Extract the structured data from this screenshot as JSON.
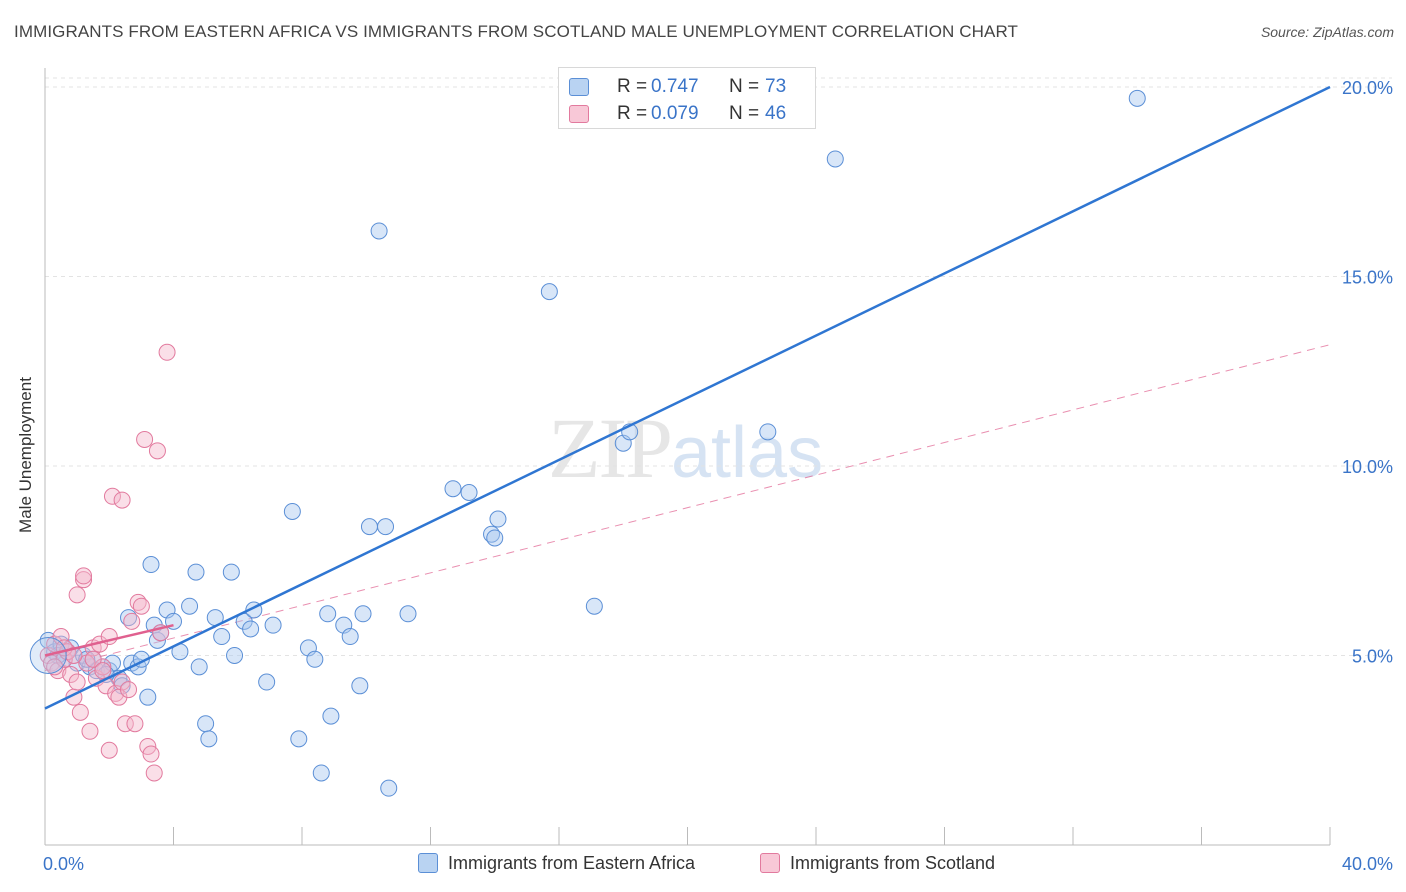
{
  "header": {
    "title": "IMMIGRANTS FROM EASTERN AFRICA VS IMMIGRANTS FROM SCOTLAND MALE UNEMPLOYMENT CORRELATION CHART",
    "source": "Source: ZipAtlas.com"
  },
  "legend": {
    "rows": [
      {
        "r_label": "R =",
        "r_value": "0.747",
        "n_label": "N =",
        "n_value": "73"
      },
      {
        "r_label": "R =",
        "r_value": "0.079",
        "n_label": "N =",
        "n_value": "46"
      }
    ]
  },
  "watermark": {
    "zip": "ZIP",
    "atlas": "atlas"
  },
  "colors": {
    "blue_fill": "#a9c8ef",
    "blue_stroke": "#5b8fd6",
    "blue_line": "#2f76d2",
    "pink_fill": "#f5b7cb",
    "pink_stroke": "#e27a9e",
    "pink_line": "#e0608f",
    "grid": "#e3e3e3",
    "tick_text": "#3a74c8"
  },
  "chart_data": {
    "type": "scatter",
    "title": "IMMIGRANTS FROM EASTERN AFRICA VS IMMIGRANTS FROM SCOTLAND MALE UNEMPLOYMENT CORRELATION CHART",
    "xlabel": "",
    "ylabel": "Male Unemployment",
    "xlim": [
      0,
      40
    ],
    "ylim": [
      0,
      20.5
    ],
    "x_tick_labels": [
      "0.0%",
      "40.0%"
    ],
    "y_ticks": [
      5,
      10,
      15,
      20
    ],
    "y_tick_labels": [
      "5.0%",
      "10.0%",
      "15.0%",
      "20.0%"
    ],
    "grid": true,
    "legend_position": "top-center",
    "series": [
      {
        "name": "Immigrants from Eastern Africa",
        "color": "#a9c8ef",
        "trend": {
          "x": [
            0,
            40
          ],
          "y": [
            3.6,
            20.0
          ]
        },
        "points": [
          [
            0.1,
            5.4
          ],
          [
            0.3,
            5.1
          ],
          [
            0.5,
            5.3
          ],
          [
            0.6,
            4.9
          ],
          [
            0.8,
            5.2
          ],
          [
            1.0,
            4.8
          ],
          [
            1.2,
            5.0
          ],
          [
            1.4,
            4.7
          ],
          [
            1.5,
            4.9
          ],
          [
            1.6,
            4.6
          ],
          [
            1.8,
            4.7
          ],
          [
            2.0,
            4.6
          ],
          [
            2.1,
            4.8
          ],
          [
            2.3,
            4.4
          ],
          [
            2.4,
            4.2
          ],
          [
            2.7,
            4.8
          ],
          [
            2.9,
            4.7
          ],
          [
            3.2,
            3.9
          ],
          [
            3.4,
            5.8
          ],
          [
            3.5,
            5.4
          ],
          [
            3.3,
            7.4
          ],
          [
            3.6,
            5.6
          ],
          [
            3.8,
            6.2
          ],
          [
            4.0,
            5.9
          ],
          [
            4.2,
            5.1
          ],
          [
            4.5,
            6.3
          ],
          [
            4.7,
            7.2
          ],
          [
            4.8,
            4.7
          ],
          [
            5.0,
            3.2
          ],
          [
            5.1,
            2.8
          ],
          [
            5.3,
            6.0
          ],
          [
            5.5,
            5.5
          ],
          [
            5.8,
            7.2
          ],
          [
            5.9,
            5.0
          ],
          [
            6.2,
            5.9
          ],
          [
            6.4,
            5.7
          ],
          [
            6.5,
            6.2
          ],
          [
            6.9,
            4.3
          ],
          [
            7.1,
            5.8
          ],
          [
            7.7,
            8.8
          ],
          [
            7.9,
            2.8
          ],
          [
            8.2,
            5.2
          ],
          [
            8.4,
            4.9
          ],
          [
            8.6,
            1.9
          ],
          [
            8.8,
            6.1
          ],
          [
            8.9,
            3.4
          ],
          [
            9.3,
            5.8
          ],
          [
            9.5,
            5.5
          ],
          [
            9.8,
            4.2
          ],
          [
            9.9,
            6.1
          ],
          [
            10.1,
            8.4
          ],
          [
            10.6,
            8.4
          ],
          [
            10.7,
            1.5
          ],
          [
            11.3,
            6.1
          ],
          [
            12.7,
            9.4
          ],
          [
            13.2,
            9.3
          ],
          [
            13.9,
            8.2
          ],
          [
            14.0,
            8.1
          ],
          [
            14.1,
            8.6
          ],
          [
            15.7,
            14.6
          ],
          [
            17.1,
            6.3
          ],
          [
            18.0,
            10.6
          ],
          [
            18.2,
            10.9
          ],
          [
            22.5,
            10.9
          ],
          [
            24.6,
            18.1
          ],
          [
            34.0,
            19.7
          ],
          [
            10.4,
            16.2
          ],
          [
            3.0,
            4.9
          ],
          [
            1.9,
            4.5
          ],
          [
            2.6,
            6.0
          ],
          [
            0.7,
            5.1
          ],
          [
            1.3,
            4.9
          ],
          [
            0.4,
            5.0
          ]
        ]
      },
      {
        "name": "Immigrants from Scotland",
        "color": "#f5b7cb",
        "trend": {
          "x": [
            0,
            4.0
          ],
          "y": [
            5.0,
            5.8
          ]
        },
        "trend_extended": {
          "x": [
            0,
            40
          ],
          "y": [
            4.6,
            13.2
          ]
        },
        "points": [
          [
            0.1,
            5.0
          ],
          [
            0.2,
            4.8
          ],
          [
            0.3,
            5.3
          ],
          [
            0.4,
            4.6
          ],
          [
            0.5,
            5.5
          ],
          [
            0.6,
            4.9
          ],
          [
            0.7,
            5.1
          ],
          [
            0.8,
            4.5
          ],
          [
            0.9,
            3.9
          ],
          [
            1.0,
            4.3
          ],
          [
            1.0,
            6.6
          ],
          [
            1.1,
            3.5
          ],
          [
            1.2,
            7.0
          ],
          [
            1.3,
            4.8
          ],
          [
            1.4,
            3.0
          ],
          [
            1.5,
            5.2
          ],
          [
            1.6,
            4.4
          ],
          [
            1.7,
            5.3
          ],
          [
            1.8,
            4.7
          ],
          [
            1.9,
            4.2
          ],
          [
            2.0,
            5.5
          ],
          [
            2.0,
            2.5
          ],
          [
            2.1,
            9.2
          ],
          [
            2.2,
            4.0
          ],
          [
            2.3,
            3.9
          ],
          [
            2.4,
            4.3
          ],
          [
            2.5,
            3.2
          ],
          [
            2.6,
            4.1
          ],
          [
            2.7,
            5.9
          ],
          [
            2.8,
            3.2
          ],
          [
            2.9,
            6.4
          ],
          [
            3.0,
            6.3
          ],
          [
            3.1,
            10.7
          ],
          [
            3.2,
            2.6
          ],
          [
            3.3,
            2.4
          ],
          [
            3.4,
            1.9
          ],
          [
            3.5,
            10.4
          ],
          [
            3.6,
            5.6
          ],
          [
            3.8,
            13.0
          ],
          [
            1.2,
            7.1
          ],
          [
            2.4,
            9.1
          ],
          [
            0.3,
            4.7
          ],
          [
            0.6,
            5.2
          ],
          [
            1.5,
            4.9
          ],
          [
            0.9,
            5.0
          ],
          [
            1.8,
            4.6
          ]
        ]
      }
    ]
  },
  "bottom_legend": {
    "items": [
      {
        "label": "Immigrants from Eastern Africa"
      },
      {
        "label": "Immigrants from Scotland"
      }
    ]
  }
}
